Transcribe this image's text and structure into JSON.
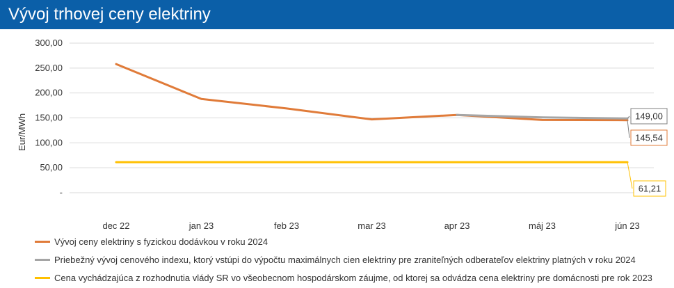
{
  "header": {
    "title": "Vývoj trhovej ceny elektriny"
  },
  "colors": {
    "header_bg": "#0b5fa8",
    "series_orange": "#e07b39",
    "series_gray": "#a5a5a5",
    "series_yellow": "#ffc000"
  },
  "chart_data": {
    "type": "line",
    "title": "",
    "xlabel": "",
    "ylabel": "Eur/MWh",
    "categories": [
      "dec 22",
      "jan 23",
      "feb 23",
      "mar 23",
      "apr 23",
      "máj 23",
      "jún 23"
    ],
    "ylim": [
      0,
      300
    ],
    "y_ticks": [
      0,
      50,
      100,
      150,
      200,
      250,
      300
    ],
    "y_tick_labels": [
      "-",
      "50,00",
      "100,00",
      "150,00",
      "200,00",
      "250,00",
      "300,00"
    ],
    "grid": "horizontal",
    "legend_position": "bottom",
    "series": [
      {
        "name": "Vývoj ceny elektriny s fyzickou dodávkou v roku 2024",
        "color": "#e07b39",
        "values": [
          258,
          188,
          169,
          147,
          156,
          146,
          145.54
        ],
        "end_label": "145,54"
      },
      {
        "name": "Priebežný vývoj cenového indexu, ktorý vstúpi do výpočtu maximálnych cien elektriny pre zraniteľných odberateľov elektriny platných v roku 2024",
        "color": "#a5a5a5",
        "values": [
          null,
          null,
          null,
          null,
          156,
          151,
          149.0
        ],
        "end_label": "149,00"
      },
      {
        "name": "Cena vychádzajúca z rozhodnutia vlády SR vo všeobecnom hospodárskom záujme, od ktorej sa odvádza cena elektriny pre domácnosti pre rok 2023",
        "color": "#ffc000",
        "values": [
          61.21,
          61.21,
          61.21,
          61.21,
          61.21,
          61.21,
          61.21
        ],
        "end_label": "61,21"
      }
    ]
  }
}
